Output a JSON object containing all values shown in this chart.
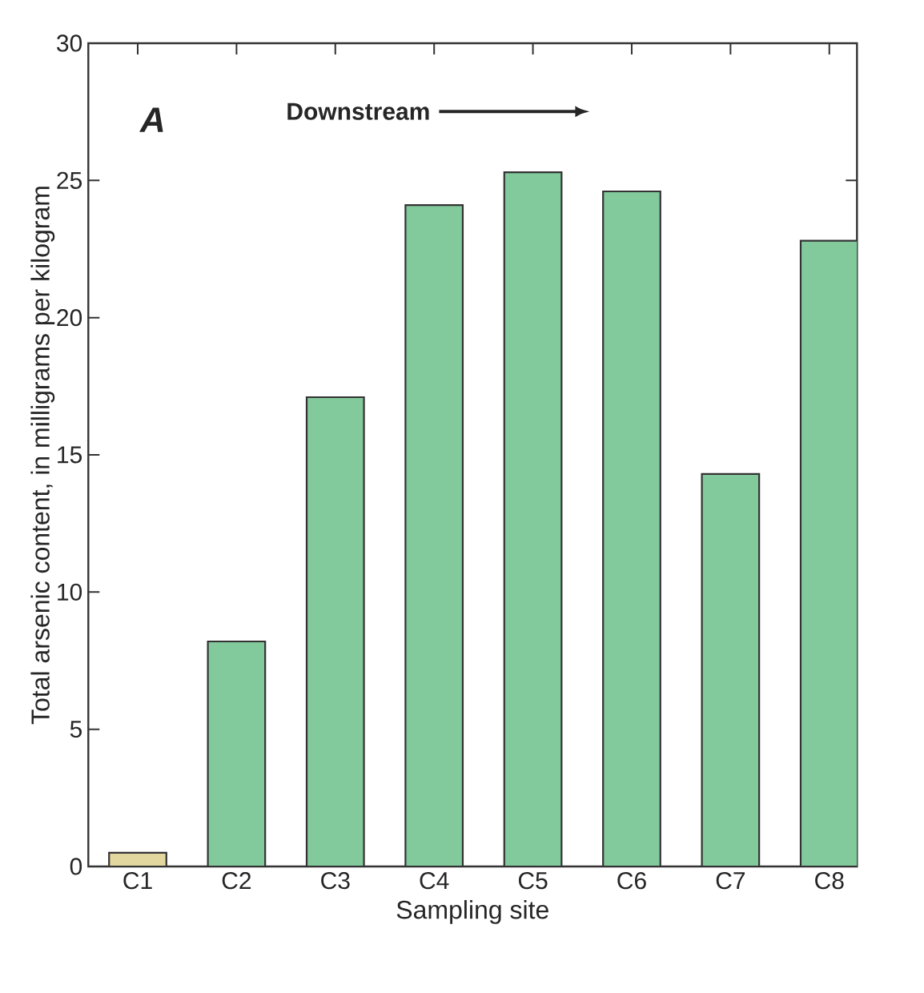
{
  "chart_data": {
    "type": "bar",
    "xlabel": "Sampling site",
    "ylabel": "Total arsenic content, in milligrams per kilogram",
    "categories": [
      "C1",
      "C2",
      "C3",
      "C4",
      "C5",
      "C6",
      "C7",
      "C8"
    ],
    "values": [
      0.5,
      8.2,
      17.1,
      24.1,
      25.3,
      24.6,
      14.3,
      22.8
    ],
    "colors": [
      "#e3d7a0",
      "#82c99c",
      "#82c99c",
      "#82c99c",
      "#82c99c",
      "#82c99c",
      "#82c99c",
      "#82c99c"
    ],
    "ylim": [
      0,
      30
    ],
    "yticks": [
      0,
      5,
      10,
      15,
      20,
      25,
      30
    ],
    "annotations": [
      "A",
      "Downstream"
    ]
  }
}
